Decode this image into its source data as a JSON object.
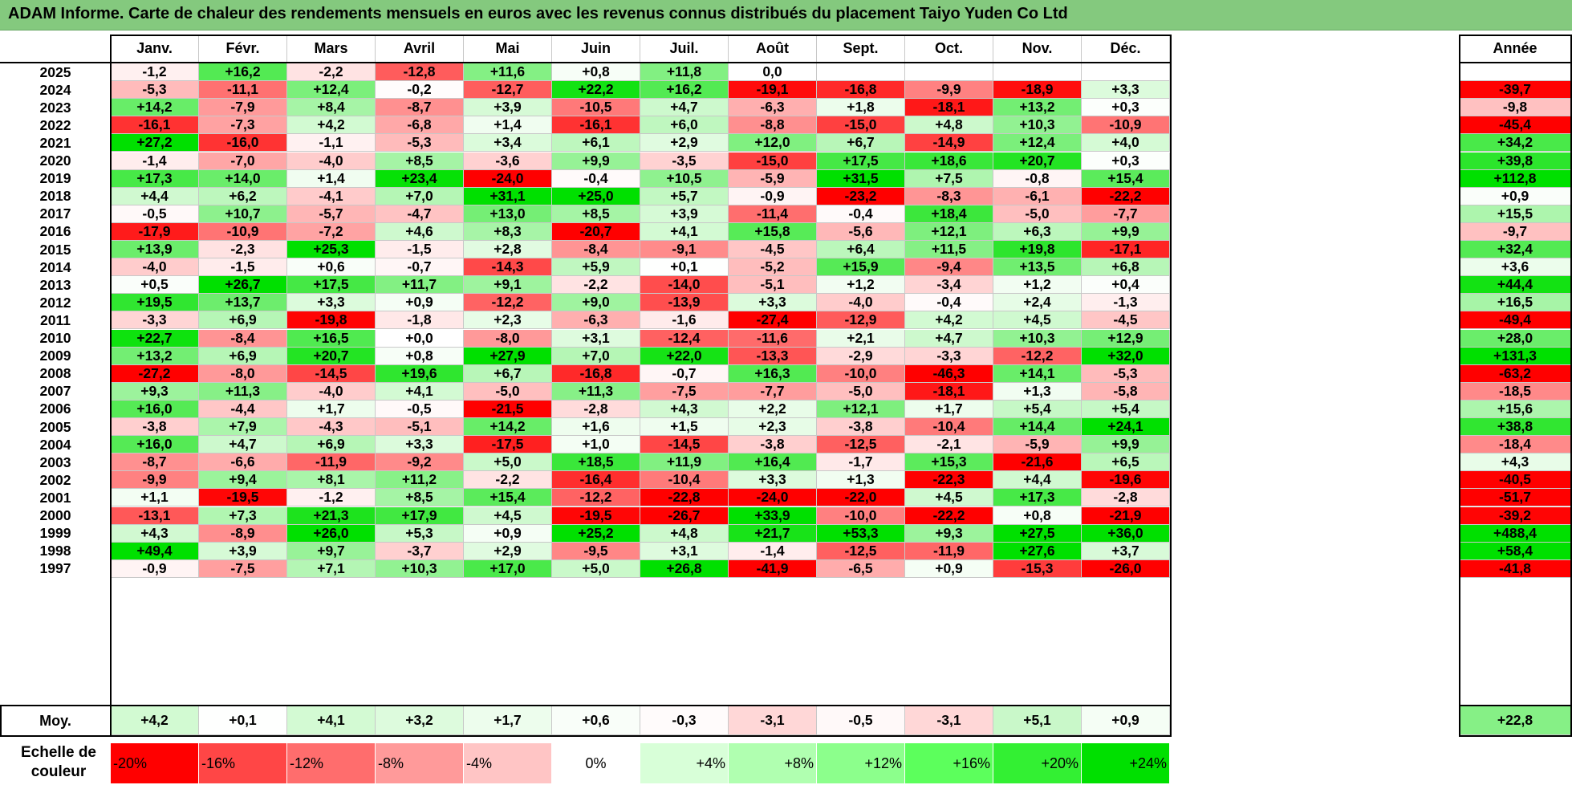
{
  "title": "ADAM Informe. Carte de chaleur des rendements mensuels en euros avec les revenus connus distribués du placement Taiyo Yuden Co Ltd",
  "chart_data": {
    "type": "heatmap",
    "months": [
      "Janv.",
      "Févr.",
      "Mars",
      "Avril",
      "Mai",
      "Juin",
      "Juil.",
      "Août",
      "Sept.",
      "Oct.",
      "Nov.",
      "Déc."
    ],
    "annual_header": "Année",
    "rows": [
      {
        "year": "2025",
        "values": [
          "-1,2",
          "+16,2",
          "-2,2",
          "-12,8",
          "+11,6",
          "+0,8",
          "+11,8",
          "0,0",
          "",
          "",
          "",
          ""
        ],
        "annual": ""
      },
      {
        "year": "2024",
        "values": [
          "-5,3",
          "-11,1",
          "+12,4",
          "-0,2",
          "-12,7",
          "+22,2",
          "+16,2",
          "-19,1",
          "-16,8",
          "-9,9",
          "-18,9",
          "+3,3"
        ],
        "annual": "-39,7"
      },
      {
        "year": "2023",
        "values": [
          "+14,2",
          "-7,9",
          "+8,4",
          "-8,7",
          "+3,9",
          "-10,5",
          "+4,7",
          "-6,3",
          "+1,8",
          "-18,1",
          "+13,2",
          "+0,3"
        ],
        "annual": "-9,8"
      },
      {
        "year": "2022",
        "values": [
          "-16,1",
          "-7,3",
          "+4,2",
          "-6,8",
          "+1,4",
          "-16,1",
          "+6,0",
          "-8,8",
          "-15,0",
          "+4,8",
          "+10,3",
          "-10,9"
        ],
        "annual": "-45,4"
      },
      {
        "year": "2021",
        "values": [
          "+27,2",
          "-16,0",
          "-1,1",
          "-5,3",
          "+3,4",
          "+6,1",
          "+2,9",
          "+12,0",
          "+6,7",
          "-14,9",
          "+12,4",
          "+4,0"
        ],
        "annual": "+34,2"
      },
      {
        "year": "2020",
        "values": [
          "-1,4",
          "-7,0",
          "-4,0",
          "+8,5",
          "-3,6",
          "+9,9",
          "-3,5",
          "-15,0",
          "+17,5",
          "+18,6",
          "+20,7",
          "+0,3"
        ],
        "annual": "+39,8"
      },
      {
        "year": "2019",
        "values": [
          "+17,3",
          "+14,0",
          "+1,4",
          "+23,4",
          "-24,0",
          "-0,4",
          "+10,5",
          "-5,9",
          "+31,5",
          "+7,5",
          "-0,8",
          "+15,4"
        ],
        "annual": "+112,8"
      },
      {
        "year": "2018",
        "values": [
          "+4,4",
          "+6,2",
          "-4,1",
          "+7,0",
          "+31,1",
          "+25,0",
          "+5,7",
          "-0,9",
          "-23,2",
          "-8,3",
          "-6,1",
          "-22,2"
        ],
        "annual": "+0,9"
      },
      {
        "year": "2017",
        "values": [
          "-0,5",
          "+10,7",
          "-5,7",
          "-4,7",
          "+13,0",
          "+8,5",
          "+3,9",
          "-11,4",
          "-0,4",
          "+18,4",
          "-5,0",
          "-7,7"
        ],
        "annual": "+15,5"
      },
      {
        "year": "2016",
        "values": [
          "-17,9",
          "-10,9",
          "-7,2",
          "+4,6",
          "+8,3",
          "-20,7",
          "+4,1",
          "+15,8",
          "-5,6",
          "+12,1",
          "+6,3",
          "+9,9"
        ],
        "annual": "-9,7"
      },
      {
        "year": "2015",
        "values": [
          "+13,9",
          "-2,3",
          "+25,3",
          "-1,5",
          "+2,8",
          "-8,4",
          "-9,1",
          "-4,5",
          "+6,4",
          "+11,5",
          "+19,8",
          "-17,1"
        ],
        "annual": "+32,4"
      },
      {
        "year": "2014",
        "values": [
          "-4,0",
          "-1,5",
          "+0,6",
          "-0,7",
          "-14,3",
          "+5,9",
          "+0,1",
          "-5,2",
          "+15,9",
          "-9,4",
          "+13,5",
          "+6,8"
        ],
        "annual": "+3,6"
      },
      {
        "year": "2013",
        "values": [
          "+0,5",
          "+26,7",
          "+17,5",
          "+11,7",
          "+9,1",
          "-2,2",
          "-14,0",
          "-5,1",
          "+1,2",
          "-3,4",
          "+1,2",
          "+0,4"
        ],
        "annual": "+44,4"
      },
      {
        "year": "2012",
        "values": [
          "+19,5",
          "+13,7",
          "+3,3",
          "+0,9",
          "-12,2",
          "+9,0",
          "-13,9",
          "+3,3",
          "-4,0",
          "-0,4",
          "+2,4",
          "-1,3"
        ],
        "annual": "+16,5"
      },
      {
        "year": "2011",
        "values": [
          "-3,3",
          "+6,9",
          "-19,8",
          "-1,8",
          "+2,3",
          "-6,3",
          "-1,6",
          "-27,4",
          "-12,9",
          "+4,2",
          "+4,5",
          "-4,5"
        ],
        "annual": "-49,4"
      },
      {
        "year": "2010",
        "values": [
          "+22,7",
          "-8,4",
          "+16,5",
          "+0,0",
          "-8,0",
          "+3,1",
          "-12,4",
          "-11,6",
          "+2,1",
          "+4,7",
          "+10,3",
          "+12,9"
        ],
        "annual": "+28,0"
      },
      {
        "year": "2009",
        "values": [
          "+13,2",
          "+6,9",
          "+20,7",
          "+0,8",
          "+27,9",
          "+7,0",
          "+22,0",
          "-13,3",
          "-2,9",
          "-3,3",
          "-12,2",
          "+32,0"
        ],
        "annual": "+131,3"
      },
      {
        "year": "2008",
        "values": [
          "-27,2",
          "-8,0",
          "-14,5",
          "+19,6",
          "+6,7",
          "-16,8",
          "-0,7",
          "+16,3",
          "-10,0",
          "-46,3",
          "+14,1",
          "-5,3"
        ],
        "annual": "-63,2"
      },
      {
        "year": "2007",
        "values": [
          "+9,3",
          "+11,3",
          "-4,0",
          "+4,1",
          "-5,0",
          "+11,3",
          "-7,5",
          "-7,7",
          "-5,0",
          "-18,1",
          "+1,3",
          "-5,8"
        ],
        "annual": "-18,5"
      },
      {
        "year": "2006",
        "values": [
          "+16,0",
          "-4,4",
          "+1,7",
          "-0,5",
          "-21,5",
          "-2,8",
          "+4,3",
          "+2,2",
          "+12,1",
          "+1,7",
          "+5,4",
          "+5,4"
        ],
        "annual": "+15,6"
      },
      {
        "year": "2005",
        "values": [
          "-3,8",
          "+7,9",
          "-4,3",
          "-5,1",
          "+14,2",
          "+1,6",
          "+1,5",
          "+2,3",
          "-3,8",
          "-10,4",
          "+14,4",
          "+24,1"
        ],
        "annual": "+38,8"
      },
      {
        "year": "2004",
        "values": [
          "+16,0",
          "+4,7",
          "+6,9",
          "+3,3",
          "-17,5",
          "+1,0",
          "-14,5",
          "-3,8",
          "-12,5",
          "-2,1",
          "-5,9",
          "+9,9"
        ],
        "annual": "-18,4"
      },
      {
        "year": "2003",
        "values": [
          "-8,7",
          "-6,6",
          "-11,9",
          "-9,2",
          "+5,0",
          "+18,5",
          "+11,9",
          "+16,4",
          "-1,7",
          "+15,3",
          "-21,6",
          "+6,5"
        ],
        "annual": "+4,3"
      },
      {
        "year": "2002",
        "values": [
          "-9,9",
          "+9,4",
          "+8,1",
          "+11,2",
          "-2,2",
          "-16,4",
          "-10,4",
          "+3,3",
          "+1,3",
          "-22,3",
          "+4,4",
          "-19,6"
        ],
        "annual": "-40,5"
      },
      {
        "year": "2001",
        "values": [
          "+1,1",
          "-19,5",
          "-1,2",
          "+8,5",
          "+15,4",
          "-12,2",
          "-22,8",
          "-24,0",
          "-22,0",
          "+4,5",
          "+17,3",
          "-2,8"
        ],
        "annual": "-51,7"
      },
      {
        "year": "2000",
        "values": [
          "-13,1",
          "+7,3",
          "+21,3",
          "+17,9",
          "+4,5",
          "-19,5",
          "-26,7",
          "+33,9",
          "-10,0",
          "-22,2",
          "+0,8",
          "-21,9"
        ],
        "annual": "-39,2"
      },
      {
        "year": "1999",
        "values": [
          "+4,3",
          "-8,9",
          "+26,0",
          "+5,3",
          "+0,9",
          "+25,2",
          "+4,8",
          "+21,7",
          "+53,3",
          "+9,3",
          "+27,5",
          "+36,0"
        ],
        "annual": "+488,4"
      },
      {
        "year": "1998",
        "values": [
          "+49,4",
          "+3,9",
          "+9,7",
          "-3,7",
          "+2,9",
          "-9,5",
          "+3,1",
          "-1,4",
          "-12,5",
          "-11,9",
          "+27,6",
          "+3,7"
        ],
        "annual": "+58,4"
      },
      {
        "year": "1997",
        "values": [
          "-0,9",
          "-7,5",
          "+7,1",
          "+10,3",
          "+17,0",
          "+5,0",
          "+26,8",
          "-41,9",
          "-6,5",
          "+0,9",
          "-15,3",
          "-26,0"
        ],
        "annual": "-41,8"
      }
    ],
    "average": {
      "label": "Moy.",
      "values": [
        "+4,2",
        "+0,1",
        "+4,1",
        "+3,2",
        "+1,7",
        "+0,6",
        "-0,3",
        "-3,1",
        "-0,5",
        "-3,1",
        "+5,1",
        "+0,9"
      ],
      "annual": "+22,8"
    },
    "legend": {
      "label": "Echelle de couleur",
      "steps": [
        {
          "label": "-20%",
          "color": "#ff0000"
        },
        {
          "label": "-16%",
          "color": "#ff4646"
        },
        {
          "label": "-12%",
          "color": "#ff6d6d"
        },
        {
          "label": "-8%",
          "color": "#ff9a9a"
        },
        {
          "label": "-4%",
          "color": "#ffc5c5"
        },
        {
          "label": "0%",
          "color": "#ffffff"
        },
        {
          "label": "+4%",
          "color": "#d8ffd8"
        },
        {
          "label": "+8%",
          "color": "#b0ffb0"
        },
        {
          "label": "+12%",
          "color": "#8cff8c"
        },
        {
          "label": "+16%",
          "color": "#5cff5c"
        },
        {
          "label": "+20%",
          "color": "#33f033"
        },
        {
          "label": "+24%",
          "color": "#00e000"
        }
      ]
    }
  }
}
